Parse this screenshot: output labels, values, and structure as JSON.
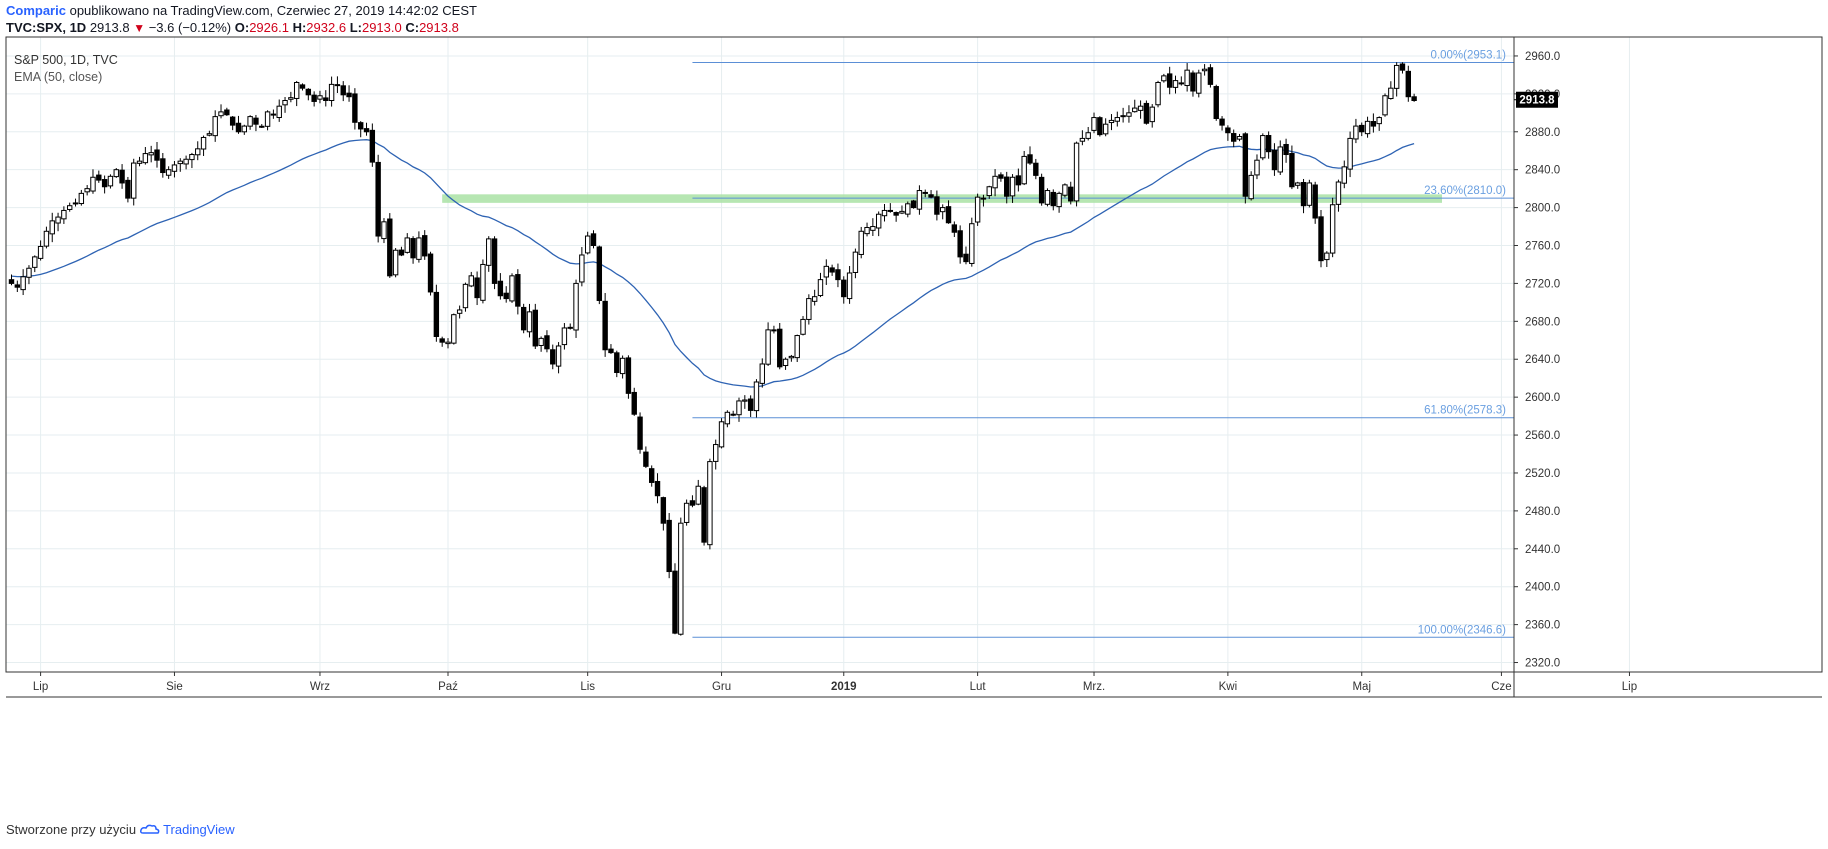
{
  "header": {
    "author": "Comparic",
    "published": "opublikowano na TradingView.com, Czerwiec 27, 2019 14:42:02 CEST",
    "symbol": "TVC:SPX, 1D",
    "last": "2913.8",
    "change": "−3.6 (−0.12%)",
    "o_label": "O:",
    "o_val": "2926.1",
    "h_label": "H:",
    "h_val": "2932.6",
    "l_label": "L:",
    "l_val": "2913.0",
    "c_label": "C:",
    "c_val": "2913.8"
  },
  "legend": {
    "title": "S&P 500, 1D, TVC",
    "indicator": "EMA (50, close)"
  },
  "footer": {
    "made_with": "Stworzone przy użyciu",
    "brand": "TradingView"
  },
  "colors": {
    "up_fill": "#ffffff",
    "down_fill": "#000000",
    "candle_outline": "#000000",
    "ema": "#2e63b3",
    "fib_line": "#5b8fd6",
    "zone": "#a9e2a4",
    "grid": "#e6eef0",
    "price_tag_bg": "#000000"
  },
  "chart_data": {
    "type": "candlestick",
    "y_axis": {
      "min": 2310,
      "max": 2980,
      "ticks": [
        2320,
        2360,
        2400,
        2440,
        2480,
        2520,
        2560,
        2600,
        2640,
        2680,
        2720,
        2760,
        2800,
        2840,
        2880,
        2920,
        2960
      ],
      "position": "right"
    },
    "x_axis": {
      "labels": [
        {
          "label": "Lip",
          "day": 5
        },
        {
          "label": "Sie",
          "day": 28
        },
        {
          "label": "Wrz",
          "day": 53
        },
        {
          "label": "Paź",
          "day": 75
        },
        {
          "label": "Lis",
          "day": 99
        },
        {
          "label": "Gru",
          "day": 122
        },
        {
          "label": "2019",
          "day": 143
        },
        {
          "label": "Lut",
          "day": 166
        },
        {
          "label": "Mrz.",
          "day": 186
        },
        {
          "label": "Kwi",
          "day": 209
        },
        {
          "label": "Maj",
          "day": 232
        },
        {
          "label": "Cze",
          "day": 256
        },
        {
          "label": "Lip",
          "day": 278
        }
      ]
    },
    "last_price": 2913.8,
    "ema_period": 50,
    "fibonacci": [
      {
        "label": "0.00%(2953.1)",
        "price": 2953.1
      },
      {
        "label": "23.60%(2810.0)",
        "price": 2810.0
      },
      {
        "label": "61.80%(2578.3)",
        "price": 2578.3
      },
      {
        "label": "100.00%(2346.6)",
        "price": 2346.6
      }
    ],
    "support_zone": {
      "from": 2805,
      "to": 2814
    },
    "closes": [
      2720,
      2716,
      2727,
      2736,
      2748,
      2759,
      2775,
      2786,
      2790,
      2797,
      2802,
      2804,
      2815,
      2820,
      2832,
      2829,
      2822,
      2833,
      2840,
      2826,
      2810,
      2847,
      2849,
      2857,
      2858,
      2850,
      2837,
      2840,
      2845,
      2849,
      2851,
      2856,
      2862,
      2874,
      2878,
      2896,
      2901,
      2898,
      2887,
      2880,
      2886,
      2896,
      2888,
      2885,
      2901,
      2898,
      2907,
      2913,
      2916,
      2932,
      2926,
      2919,
      2912,
      2918,
      2913,
      2930,
      2929,
      2919,
      2917,
      2890,
      2883,
      2880,
      2848,
      2770,
      2785,
      2728,
      2755,
      2750,
      2768,
      2747,
      2768,
      2749,
      2711,
      2664,
      2658,
      2658,
      2687,
      2692,
      2719,
      2728,
      2705,
      2740,
      2767,
      2720,
      2707,
      2704,
      2728,
      2696,
      2671,
      2690,
      2654,
      2662,
      2651,
      2635,
      2654,
      2673,
      2673,
      2720,
      2750,
      2770,
      2760,
      2702,
      2650,
      2647,
      2626,
      2641,
      2604,
      2582,
      2545,
      2527,
      2510,
      2496,
      2467,
      2416,
      2351,
      2467,
      2488,
      2486,
      2506,
      2447,
      2532,
      2550,
      2574,
      2584,
      2582,
      2596,
      2597,
      2586,
      2616,
      2635,
      2671,
      2670,
      2632,
      2640,
      2643,
      2665,
      2682,
      2704,
      2706,
      2724,
      2738,
      2732,
      2724,
      2706,
      2731,
      2753,
      2775,
      2779,
      2780,
      2793,
      2797,
      2797,
      2792,
      2796,
      2804,
      2800,
      2818,
      2816,
      2811,
      2793,
      2800,
      2784,
      2774,
      2748,
      2743,
      2783,
      2811,
      2810,
      2822,
      2833,
      2831,
      2812,
      2832,
      2824,
      2854,
      2847,
      2834,
      2805,
      2818,
      2802,
      2815,
      2824,
      2807,
      2868,
      2873,
      2879,
      2895,
      2877,
      2888,
      2892,
      2895,
      2897,
      2900,
      2905,
      2907,
      2889,
      2906,
      2932,
      2939,
      2927,
      2934,
      2931,
      2945,
      2923,
      2942,
      2946,
      2930,
      2894,
      2887,
      2879,
      2870,
      2875,
      2812,
      2834,
      2850,
      2876,
      2859,
      2840,
      2864,
      2856,
      2822,
      2826,
      2802,
      2826,
      2789,
      2744,
      2752,
      2803,
      2827,
      2843,
      2873,
      2886,
      2880,
      2891,
      2886,
      2895,
      2918,
      2926,
      2950,
      2945,
      2917,
      2913
    ],
    "ema_start": 2728
  }
}
